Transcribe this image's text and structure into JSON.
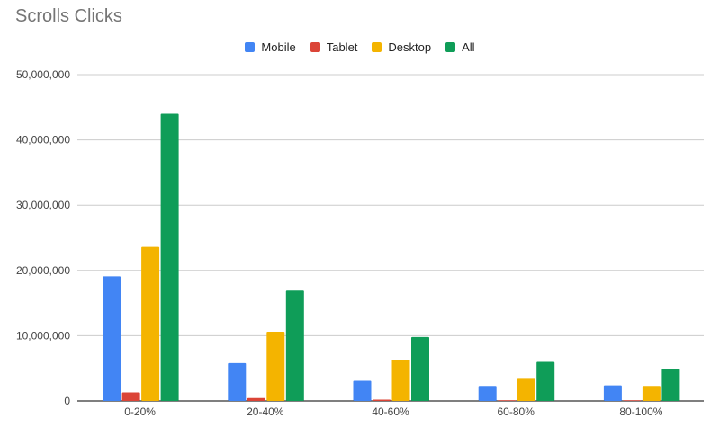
{
  "chart_data": {
    "type": "bar",
    "title": "Scrolls Clicks",
    "xlabel": "",
    "ylabel": "",
    "categories": [
      "0-20%",
      "20-40%",
      "40-60%",
      "60-80%",
      "80-100%"
    ],
    "ylim": [
      0,
      50000000
    ],
    "y_ticks": [
      0,
      10000000,
      20000000,
      30000000,
      40000000,
      50000000
    ],
    "y_tick_labels": [
      "0",
      "10,000,000",
      "20,000,000",
      "30,000,000",
      "40,000,000",
      "50,000,000"
    ],
    "grid": true,
    "legend_position": "top",
    "series": [
      {
        "name": "Mobile",
        "color": "#4285f4",
        "values": [
          19100000,
          5800000,
          3100000,
          2300000,
          2400000
        ]
      },
      {
        "name": "Tablet",
        "color": "#db4437",
        "values": [
          1300000,
          450000,
          200000,
          100000,
          100000
        ]
      },
      {
        "name": "Desktop",
        "color": "#f4b400",
        "values": [
          23600000,
          10600000,
          6300000,
          3400000,
          2300000
        ]
      },
      {
        "name": "All",
        "color": "#0f9d58",
        "values": [
          44000000,
          16900000,
          9800000,
          6000000,
          4900000
        ]
      }
    ]
  }
}
